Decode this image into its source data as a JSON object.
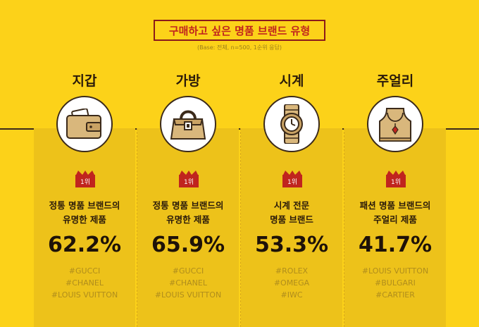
{
  "title": "구매하고 싶은 명품 브랜드 유형",
  "base_note": "(Base: 전체, n=500, 1순위 응답)",
  "colors": {
    "background": "#FCD219",
    "panel": "#EDC21A",
    "accent_red": "#C0241E",
    "dark": "#2A1A0A",
    "tag": "#B08D1C"
  },
  "chart_data": {
    "type": "table",
    "title": "구매하고 싶은 명품 브랜드 유형",
    "categories": [
      "지갑",
      "가방",
      "시계",
      "주얼리"
    ],
    "columns": [
      {
        "category": "지갑",
        "icon": "wallet-icon",
        "rank": "1위",
        "desc_line1": "정통 명품 브랜드의",
        "desc_line2": "유명한 제품",
        "value": 62.2,
        "value_label": "62.2%",
        "tags": [
          "#GUCCI",
          "#CHANEL",
          "#LOUIS VUITTON"
        ]
      },
      {
        "category": "가방",
        "icon": "handbag-icon",
        "rank": "1위",
        "desc_line1": "정통 명품 브랜드의",
        "desc_line2": "유명한 제품",
        "value": 65.9,
        "value_label": "65.9%",
        "tags": [
          "#GUCCI",
          "#CHANEL",
          "#LOUIS VUITTON"
        ]
      },
      {
        "category": "시계",
        "icon": "watch-icon",
        "rank": "1위",
        "desc_line1": "시계 전문",
        "desc_line2": "명품 브랜드",
        "value": 53.3,
        "value_label": "53.3%",
        "tags": [
          "#ROLEX",
          "#OMEGA",
          "#IWC"
        ]
      },
      {
        "category": "주얼리",
        "icon": "necklace-icon",
        "rank": "1위",
        "desc_line1": "패션 명품 브랜드의",
        "desc_line2": "주얼리 제품",
        "value": 41.7,
        "value_label": "41.7%",
        "tags": [
          "#LOUIS VUITTON",
          "#BULGARI",
          "#CARTIER"
        ]
      }
    ]
  }
}
